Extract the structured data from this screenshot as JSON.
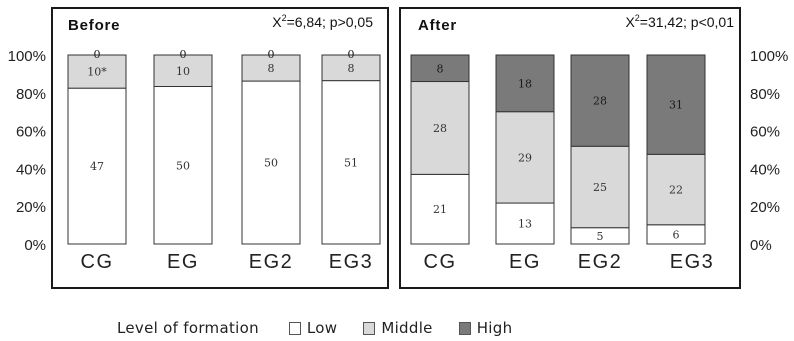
{
  "chart_data": [
    {
      "type": "bar",
      "stacked": true,
      "title": "Before",
      "stat_prefix": "X",
      "stat_sup": "2",
      "stat_rest": "=6,84; p>0,05",
      "categories": [
        "CG",
        "EG",
        "EG2",
        "EG3"
      ],
      "series": [
        {
          "name": "Low",
          "color": "#ffffff",
          "values": [
            47,
            50,
            50,
            51
          ],
          "labels": [
            "47",
            "50",
            "50",
            "51"
          ]
        },
        {
          "name": "Middle",
          "color": "#d9d9d9",
          "values": [
            10,
            10,
            8,
            8
          ],
          "labels": [
            "10*",
            "10",
            "8",
            "8"
          ]
        },
        {
          "name": "High",
          "color": "#7a7a7a",
          "values": [
            0,
            0,
            0,
            0
          ],
          "labels": [
            "0",
            "0",
            "0",
            "0"
          ]
        }
      ],
      "y_ticks": [
        "100%",
        "80%",
        "60%",
        "40%",
        "20%",
        "0%"
      ],
      "ylim": [
        0,
        100
      ],
      "y_axis_side": "left"
    },
    {
      "type": "bar",
      "stacked": true,
      "title": "After",
      "stat_prefix": "X",
      "stat_sup": "2",
      "stat_rest": "=31,42; p<0,01",
      "categories": [
        "CG",
        "EG",
        "EG2",
        "EG3"
      ],
      "series": [
        {
          "name": "Low",
          "color": "#ffffff",
          "values": [
            21,
            13,
            5,
            6
          ],
          "labels": [
            "21",
            "13",
            "5",
            "6"
          ]
        },
        {
          "name": "Middle",
          "color": "#d9d9d9",
          "values": [
            28,
            29,
            25,
            22
          ],
          "labels": [
            "28",
            "29",
            "25",
            "22"
          ]
        },
        {
          "name": "High",
          "color": "#7a7a7a",
          "values": [
            8,
            18,
            28,
            31
          ],
          "labels": [
            "8",
            "18",
            "28",
            "31"
          ]
        }
      ],
      "y_ticks": [
        "100%",
        "80%",
        "60%",
        "40%",
        "20%",
        "0%"
      ],
      "ylim": [
        0,
        100
      ],
      "y_axis_side": "right"
    }
  ],
  "legend": {
    "title": "Level of formation",
    "items": [
      {
        "label": "Low",
        "color": "#ffffff"
      },
      {
        "label": "Middle",
        "color": "#d9d9d9"
      },
      {
        "label": "High",
        "color": "#7a7a7a"
      }
    ]
  }
}
